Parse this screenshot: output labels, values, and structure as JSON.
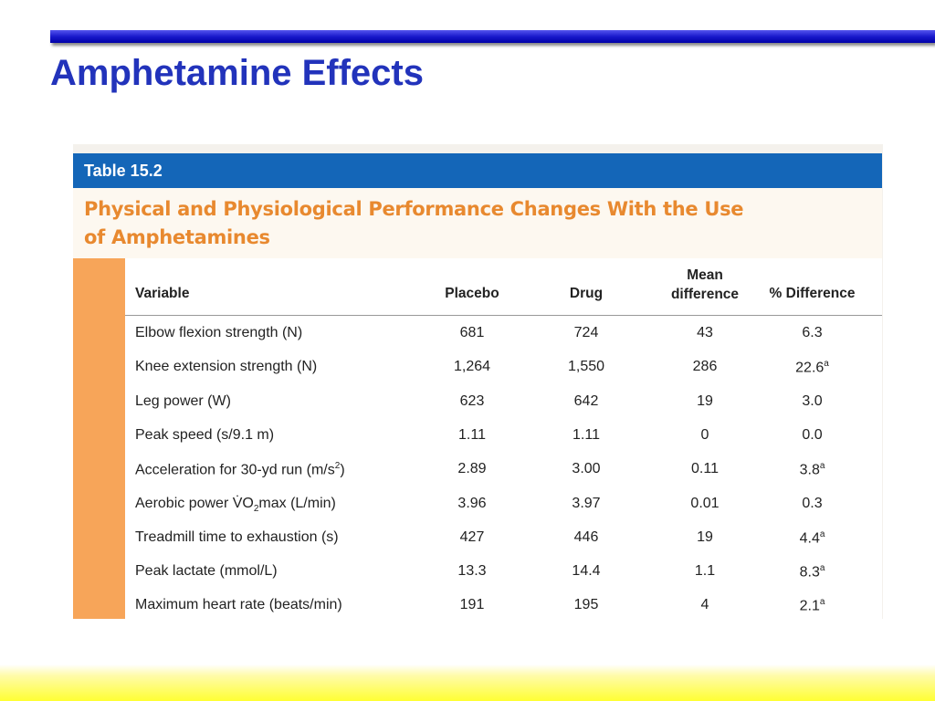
{
  "slide": {
    "title": "Amphetamine Effects"
  },
  "table": {
    "number": "Table 15.2",
    "caption_line1": "Physical and Physiological Performance Changes With the Use",
    "caption_line2": "of Amphetamines",
    "columns": [
      "Variable",
      "Placebo",
      "Drug",
      "Mean",
      "difference",
      "% Difference"
    ],
    "rows": [
      {
        "variable": "Elbow flexion strength (N)",
        "placebo": "681",
        "drug": "724",
        "mean": "43",
        "pct": "6.3",
        "sup": ""
      },
      {
        "variable": "Knee extension strength (N)",
        "placebo": "1,264",
        "drug": "1,550",
        "mean": "286",
        "pct": "22.6",
        "sup": "a"
      },
      {
        "variable": "Leg power (W)",
        "placebo": "623",
        "drug": "642",
        "mean": "19",
        "pct": "3.0",
        "sup": ""
      },
      {
        "variable": "Peak speed (s/9.1 m)",
        "placebo": "1.11",
        "drug": "1.11",
        "mean": "0",
        "pct": "0.0",
        "sup": ""
      },
      {
        "variable": "Acceleration for 30-yd run (m/s",
        "var_sup": "2",
        "var_tail": ")",
        "placebo": "2.89",
        "drug": "3.00",
        "mean": "0.11",
        "pct": "3.8",
        "sup": "a"
      },
      {
        "variable": "Aerobic power V̇O",
        "var_sub": "2",
        "var_tail": "max (L/min)",
        "placebo": "3.96",
        "drug": "3.97",
        "mean": "0.01",
        "pct": "0.3",
        "sup": ""
      },
      {
        "variable": "Treadmill time to exhaustion (s)",
        "placebo": "427",
        "drug": "446",
        "mean": "19",
        "pct": "4.4",
        "sup": "a"
      },
      {
        "variable": "Peak lactate (mmol/L)",
        "placebo": "13.3",
        "drug": "14.4",
        "mean": "1.1",
        "pct": "8.3",
        "sup": "a"
      },
      {
        "variable": "Maximum heart rate (beats/min)",
        "placebo": "191",
        "drug": "195",
        "mean": "4",
        "pct": "2.1",
        "sup": "a"
      }
    ]
  }
}
